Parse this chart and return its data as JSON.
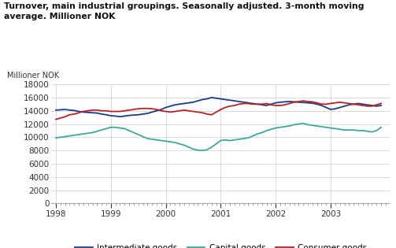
{
  "title": "Turnover, main industrial groupings. Seasonally adjusted. 3-month moving\naverage. Millioner NOK",
  "ylabel": "Millioner NOK",
  "ylim": [
    0,
    18000
  ],
  "yticks": [
    0,
    2000,
    4000,
    6000,
    8000,
    10000,
    12000,
    14000,
    16000,
    18000
  ],
  "xlim_start": 1997.92,
  "xlim_end": 2004.08,
  "xtick_years": [
    1998,
    1999,
    2000,
    2001,
    2002,
    2003
  ],
  "bg_color": "#ffffff",
  "grid_color": "#cccccc",
  "intermediate_color": "#1a3a8c",
  "capital_color": "#3aaa99",
  "consumer_color": "#bb2222",
  "legend_labels": [
    "Intermediate goods",
    "Capital goods",
    "Consumer goods"
  ],
  "intermediate_goods": [
    14100,
    14150,
    14200,
    14100,
    14050,
    13900,
    13800,
    13750,
    13700,
    13650,
    13500,
    13400,
    13250,
    13200,
    13100,
    13200,
    13300,
    13350,
    13400,
    13500,
    13600,
    13800,
    14000,
    14200,
    14500,
    14700,
    14900,
    15000,
    15100,
    15200,
    15300,
    15500,
    15700,
    15800,
    16000,
    15900,
    15800,
    15700,
    15600,
    15500,
    15400,
    15300,
    15200,
    15100,
    15000,
    14900,
    14800,
    15000,
    15200,
    15300,
    15350,
    15400,
    15350,
    15300,
    15250,
    15200,
    15150,
    15000,
    14800,
    14500,
    14200,
    14300,
    14500,
    14700,
    14900,
    15000,
    15100,
    15000,
    14900,
    14800,
    14700,
    14800
  ],
  "capital_goods": [
    9900,
    10000,
    10100,
    10200,
    10300,
    10400,
    10500,
    10600,
    10700,
    10900,
    11100,
    11300,
    11500,
    11500,
    11400,
    11300,
    11000,
    10700,
    10400,
    10100,
    9800,
    9700,
    9600,
    9500,
    9400,
    9300,
    9200,
    9000,
    8800,
    8500,
    8200,
    8050,
    8000,
    8100,
    8500,
    9000,
    9500,
    9600,
    9500,
    9600,
    9700,
    9800,
    9900,
    10200,
    10500,
    10700,
    11000,
    11200,
    11400,
    11500,
    11600,
    11700,
    11900,
    12000,
    12100,
    11900,
    11800,
    11700,
    11600,
    11500,
    11400,
    11300,
    11200,
    11100,
    11100,
    11100,
    11000,
    11000,
    10900,
    10800,
    11000,
    11500
  ],
  "consumer_goods": [
    12700,
    12900,
    13100,
    13400,
    13500,
    13700,
    13900,
    14000,
    14100,
    14100,
    14000,
    14000,
    13900,
    13900,
    13900,
    14000,
    14100,
    14200,
    14300,
    14350,
    14350,
    14300,
    14200,
    14000,
    13900,
    13800,
    13900,
    14000,
    14100,
    14000,
    13900,
    13800,
    13700,
    13500,
    13400,
    13800,
    14200,
    14500,
    14700,
    14800,
    15000,
    15100,
    15100,
    15000,
    15000,
    15000,
    15100,
    14900,
    14800,
    14800,
    14900,
    15100,
    15300,
    15400,
    15500,
    15400,
    15350,
    15200,
    15000,
    15000,
    15100,
    15200,
    15300,
    15200,
    15100,
    15000,
    14900,
    14800,
    14700,
    14700,
    14900,
    15100
  ]
}
